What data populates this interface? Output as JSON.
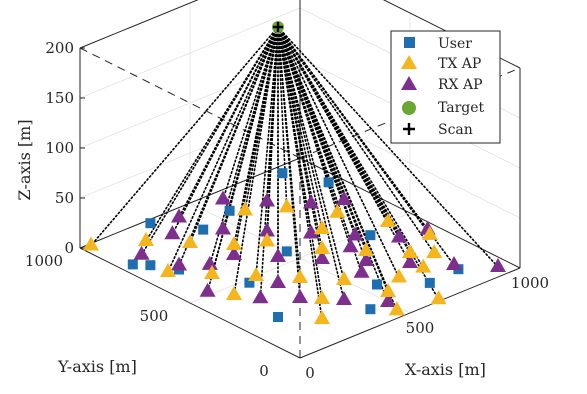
{
  "chart_data": {
    "type": "scatter",
    "title": "",
    "axes": {
      "xlabel": "X-axis [m]",
      "ylabel": "Y-axis [m]",
      "zlabel": "Z-axis [m]",
      "xlim": [
        0,
        1000
      ],
      "ylim": [
        0,
        1000
      ],
      "zlim": [
        0,
        200
      ],
      "x_ticks": [
        "0",
        "500",
        "1000"
      ],
      "y_ticks": [
        "0",
        "500",
        "1000"
      ],
      "z_ticks": [
        "0",
        "50",
        "100",
        "150",
        "200"
      ],
      "grid": true,
      "box": "dashed",
      "legend_position": "top-right"
    },
    "colors": {
      "user": "#1f6fb0",
      "tx_ap": "#f5b51d",
      "rx_ap": "#7e2f8e",
      "target": "#6aa833",
      "scan": "#000000"
    },
    "series": [
      {
        "name": "User",
        "marker": "square",
        "points": [
          [
            50,
            810,
            0
          ],
          [
            90,
            770,
            0
          ],
          [
            140,
            690,
            0
          ],
          [
            400,
            840,
            0
          ],
          [
            500,
            560,
            0
          ],
          [
            150,
            250,
            0
          ],
          [
            420,
            100,
            0
          ],
          [
            560,
            210,
            0
          ],
          [
            700,
            110,
            0
          ],
          [
            880,
            960,
            0
          ],
          [
            950,
            820,
            0
          ],
          [
            790,
            470,
            0
          ],
          [
            840,
            120,
            0
          ],
          [
            250,
            480,
            0
          ],
          [
            560,
            880,
            0
          ],
          [
            300,
            980,
            0
          ]
        ]
      },
      {
        "name": "TX AP",
        "marker": "triangle-up",
        "points": [
          [
            40,
            990,
            0
          ],
          [
            100,
            700,
            0
          ],
          [
            200,
            900,
            0
          ],
          [
            300,
            800,
            0
          ],
          [
            200,
            600,
            0
          ],
          [
            300,
            500,
            0
          ],
          [
            400,
            700,
            0
          ],
          [
            500,
            650,
            0
          ],
          [
            400,
            400,
            0
          ],
          [
            500,
            300,
            0
          ],
          [
            600,
            500,
            0
          ],
          [
            700,
            600,
            0
          ],
          [
            700,
            400,
            0
          ],
          [
            800,
            300,
            0
          ],
          [
            900,
            500,
            0
          ],
          [
            550,
            150,
            0
          ],
          [
            650,
            200,
            0
          ],
          [
            760,
            200,
            0
          ],
          [
            860,
            250,
            0
          ],
          [
            940,
            350,
            0
          ],
          [
            600,
            850,
            0
          ],
          [
            720,
            780,
            0
          ],
          [
            820,
            650,
            0
          ],
          [
            350,
            250,
            0
          ],
          [
            250,
            150,
            0
          ],
          [
            480,
            40,
            0
          ],
          [
            640,
            10,
            0
          ],
          [
            150,
            450,
            0
          ]
        ]
      },
      {
        "name": "RX AP",
        "marker": "triangle-up",
        "points": [
          [
            120,
            840,
            0
          ],
          [
            160,
            710,
            0
          ],
          [
            240,
            650,
            0
          ],
          [
            100,
            520,
            0
          ],
          [
            200,
            380,
            0
          ],
          [
            300,
            300,
            0
          ],
          [
            400,
            200,
            0
          ],
          [
            500,
            100,
            0
          ],
          [
            350,
            650,
            0
          ],
          [
            450,
            550,
            0
          ],
          [
            550,
            450,
            0
          ],
          [
            650,
            350,
            0
          ],
          [
            750,
            250,
            0
          ],
          [
            850,
            150,
            0
          ],
          [
            950,
            50,
            0
          ],
          [
            450,
            800,
            0
          ],
          [
            550,
            700,
            0
          ],
          [
            650,
            600,
            0
          ],
          [
            750,
            500,
            0
          ],
          [
            850,
            400,
            0
          ],
          [
            960,
            380,
            0
          ],
          [
            600,
            950,
            0
          ],
          [
            700,
            850,
            0
          ],
          [
            800,
            750,
            0
          ],
          [
            900,
            700,
            0
          ],
          [
            400,
            950,
            0
          ],
          [
            300,
            880,
            0
          ],
          [
            580,
            300,
            0
          ],
          [
            680,
            450,
            0
          ],
          [
            320,
            420,
            0
          ]
        ]
      },
      {
        "name": "Target",
        "marker": "circle",
        "points": [
          [
            850,
            950,
            150
          ]
        ]
      },
      {
        "name": "Scan",
        "marker": "plus",
        "points": [
          [
            850,
            950,
            150
          ]
        ]
      }
    ]
  }
}
